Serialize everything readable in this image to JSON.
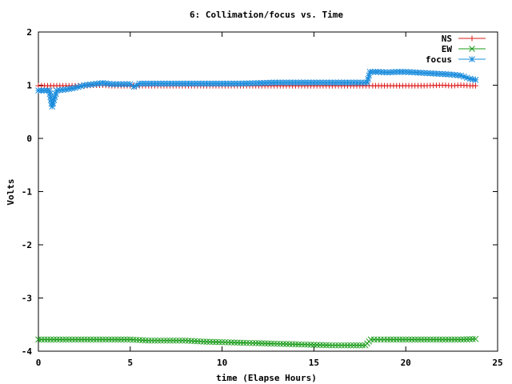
{
  "chart_data": {
    "type": "line",
    "title": "6: Collimation/focus vs. Time",
    "xlabel": "time (Elapse Hours)",
    "ylabel": "Volts",
    "xlim": [
      0,
      25
    ],
    "ylim": [
      -4,
      2
    ],
    "xticks": [
      "0",
      "5",
      "10",
      "15",
      "20",
      "25"
    ],
    "yticks": [
      "-4",
      "-3",
      "-2",
      "-1",
      "0",
      "1",
      "2"
    ],
    "grid": false,
    "legend_position": "top-right",
    "series": [
      {
        "name": "NS",
        "color": "#dd1c1c",
        "marker": "plus",
        "x": [
          0,
          0.5,
          1,
          1.5,
          2,
          2.5,
          3,
          3.5,
          4,
          5,
          6,
          7,
          8,
          9,
          10,
          11,
          12,
          13,
          14,
          15,
          16,
          17,
          18,
          18.2,
          19,
          20,
          21,
          22,
          22.5,
          23,
          23.5,
          23.8
        ],
        "y": [
          0.99,
          0.99,
          0.99,
          0.99,
          0.99,
          0.99,
          1.0,
          1.0,
          0.99,
          0.99,
          0.99,
          0.99,
          0.99,
          0.99,
          0.99,
          0.99,
          0.99,
          0.99,
          0.99,
          0.99,
          0.99,
          0.99,
          0.99,
          0.99,
          0.99,
          0.99,
          0.99,
          1.0,
          0.99,
          1.0,
          0.99,
          0.99
        ]
      },
      {
        "name": "EW",
        "color": "#1a9c1a",
        "marker": "x",
        "x": [
          0,
          1,
          2,
          3,
          4,
          5,
          6,
          7,
          8,
          9,
          10,
          11,
          12,
          13,
          14,
          15,
          16,
          17,
          17.8,
          18.1,
          19,
          20,
          21,
          22,
          23,
          23.8
        ],
        "y": [
          -3.78,
          -3.78,
          -3.78,
          -3.78,
          -3.78,
          -3.78,
          -3.8,
          -3.8,
          -3.8,
          -3.82,
          -3.83,
          -3.84,
          -3.85,
          -3.86,
          -3.87,
          -3.88,
          -3.89,
          -3.89,
          -3.89,
          -3.78,
          -3.78,
          -3.78,
          -3.78,
          -3.78,
          -3.78,
          -3.77
        ]
      },
      {
        "name": "focus",
        "color": "#1a8cdd",
        "marker": "star",
        "x": [
          0,
          0.3,
          0.6,
          0.75,
          0.85,
          1,
          1.5,
          2,
          2.5,
          3,
          3.5,
          4,
          4.5,
          5,
          5.2,
          5.5,
          6,
          7,
          8,
          9,
          10,
          11,
          12,
          13,
          14,
          15,
          16,
          17,
          17.9,
          18.05,
          18.5,
          19,
          19.5,
          20,
          21,
          22,
          22.5,
          23,
          23.5,
          23.8
        ],
        "y": [
          0.9,
          0.9,
          0.9,
          0.6,
          0.72,
          0.9,
          0.92,
          0.95,
          1.0,
          1.02,
          1.04,
          1.02,
          1.02,
          1.02,
          0.97,
          1.03,
          1.03,
          1.03,
          1.03,
          1.03,
          1.03,
          1.03,
          1.04,
          1.05,
          1.05,
          1.05,
          1.05,
          1.05,
          1.05,
          1.25,
          1.25,
          1.24,
          1.25,
          1.25,
          1.23,
          1.21,
          1.2,
          1.18,
          1.12,
          1.1
        ]
      }
    ]
  }
}
